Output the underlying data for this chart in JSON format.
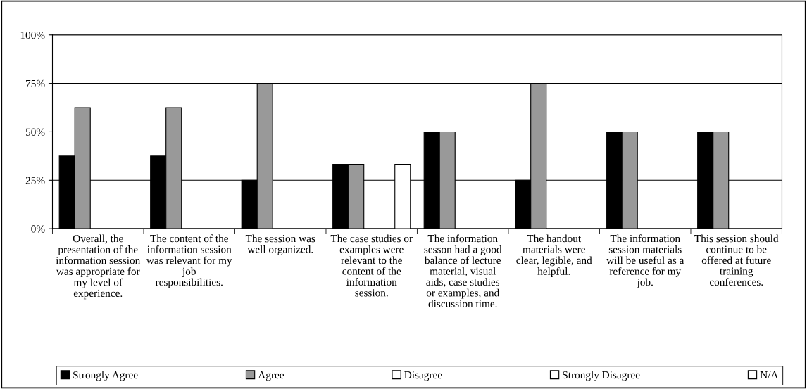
{
  "chart_data": {
    "type": "bar",
    "categories": [
      "Overall, the presentation of the information session was appropriate for my level of experience.",
      "The content of the information session was relevant for my job responsibilities.",
      "The session was well organized.",
      "The case studies or examples were relevant to the content of the information session.",
      "The information sesson had a good balance of lecture material, visual aids, case studies or examples, and discussion time.",
      "The handout materials were clear, legible, and helpful.",
      "The information session materials will be useful as a reference for my job.",
      "This session should continue to be offered at future training conferences."
    ],
    "series": [
      {
        "name": "Strongly Agree",
        "color": "#000000",
        "values": [
          37.5,
          37.5,
          25,
          33.3,
          50,
          25,
          50,
          50
        ]
      },
      {
        "name": "Agree",
        "color": "#999999",
        "values": [
          62.5,
          62.5,
          75,
          33.3,
          50,
          75,
          50,
          50
        ]
      },
      {
        "name": "Disagree",
        "color": "#ffffff",
        "values": [
          0,
          0,
          0,
          0,
          0,
          0,
          0,
          0
        ]
      },
      {
        "name": "Strongly Disagree",
        "color": "#ffffff",
        "values": [
          0,
          0,
          0,
          0,
          0,
          0,
          0,
          0
        ]
      },
      {
        "name": "N/A",
        "color": "#ffffff",
        "values": [
          0,
          0,
          0,
          33.3,
          0,
          0,
          0,
          0
        ]
      }
    ],
    "ylim": [
      0,
      100
    ],
    "yticks": [
      {
        "value": 0,
        "label": "0%"
      },
      {
        "value": 25,
        "label": "25%"
      },
      {
        "value": 50,
        "label": "50%"
      },
      {
        "value": 75,
        "label": "75%"
      },
      {
        "value": 100,
        "label": "100%"
      }
    ],
    "grid": "y",
    "legend": "bottom"
  }
}
